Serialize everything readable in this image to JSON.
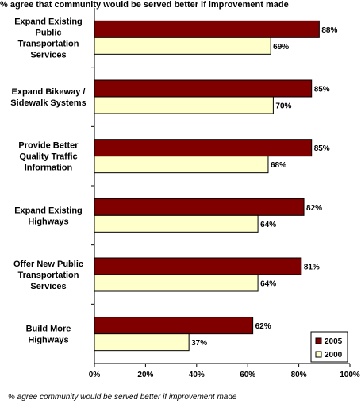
{
  "chart_data": {
    "type": "bar",
    "orientation": "horizontal",
    "title": "% agree that community would be served better if improvement made",
    "footnote": "% agree community would be served better if improvement made",
    "categories": [
      [
        "Expand Existing",
        "Public",
        "Transportation",
        "Services"
      ],
      [
        "Expand Bikeway /",
        "Sidewalk Systems"
      ],
      [
        "Provide Better",
        "Quality Traffic",
        "Information"
      ],
      [
        "Expand Existing",
        "Highways"
      ],
      [
        "Offer New Public",
        "Transportation",
        "Services"
      ],
      [
        "Build More",
        "Highways"
      ]
    ],
    "series": [
      {
        "name": "2005",
        "color": "#800000",
        "values": [
          88,
          85,
          85,
          82,
          81,
          62
        ],
        "labels": [
          "88%",
          "85%",
          "85%",
          "82%",
          "81%",
          "62%"
        ]
      },
      {
        "name": "2000",
        "color": "#ffffcc",
        "values": [
          69,
          70,
          68,
          64,
          64,
          37
        ],
        "labels": [
          "69%",
          "70%",
          "68%",
          "64%",
          "64%",
          "37%"
        ]
      }
    ],
    "xlim": [
      0,
      100
    ],
    "xticks": [
      0,
      20,
      40,
      60,
      80,
      100
    ],
    "xtick_labels": [
      "0%",
      "20%",
      "40%",
      "60%",
      "80%",
      "100%"
    ],
    "grid": false,
    "legend_position": "bottom-right"
  }
}
